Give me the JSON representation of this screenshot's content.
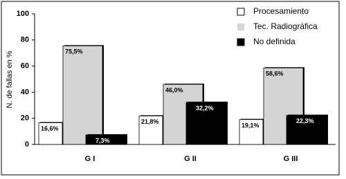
{
  "chart_data": {
    "type": "bar",
    "y_label": "N. de fallas en %",
    "categories": [
      "G I",
      "G II",
      "G III"
    ],
    "series": [
      {
        "name": "Procesamiento",
        "color": "#ffffff",
        "values": [
          16.6,
          21.8,
          19.1
        ],
        "value_labels": [
          "16,6%",
          "21,8%",
          "19,1%"
        ]
      },
      {
        "name": "Tec. Radiográfica",
        "color": "#d4d4d4",
        "values": [
          75.5,
          46.0,
          58.6
        ],
        "value_labels": [
          "75,5%",
          "46,0%",
          "58,6%"
        ]
      },
      {
        "name": "No definida",
        "color": "#000000",
        "values": [
          7.3,
          32.2,
          22.3
        ],
        "value_labels": [
          "7,3%",
          "32,2%",
          "22,3%"
        ]
      }
    ],
    "ylim": [
      0,
      100
    ],
    "yticks": [
      0,
      20,
      40,
      60,
      80,
      100
    ],
    "legend": "upper right"
  }
}
